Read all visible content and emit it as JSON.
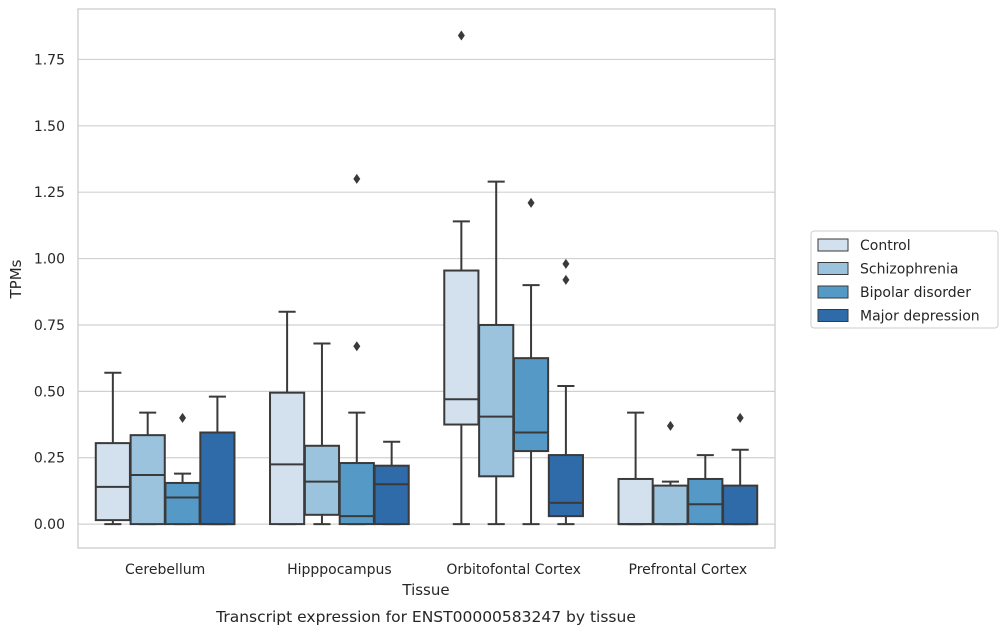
{
  "caption": "Transcript expression for ENST00000583247 by tissue",
  "chart_data": {
    "type": "box",
    "xlabel": "Tissue",
    "ylabel": "TPMs",
    "ylim": [
      -0.09,
      1.94
    ],
    "yticks": [
      "0.00",
      "0.25",
      "0.50",
      "0.75",
      "1.00",
      "1.25",
      "1.50",
      "1.75"
    ],
    "grid": "horizontal",
    "legend_position": "right",
    "categories": [
      "Cerebellum",
      "Hipppocampus",
      "Orbitofontal Cortex",
      "Prefrontal Cortex"
    ],
    "series": [
      {
        "name": "Control",
        "color": "#d3e1ef",
        "boxes": [
          {
            "min": 0.0,
            "q1": 0.015,
            "median": 0.14,
            "q3": 0.305,
            "max": 0.57,
            "outliers": []
          },
          {
            "min": 0.0,
            "q1": 0.0,
            "median": 0.225,
            "q3": 0.495,
            "max": 0.8,
            "outliers": []
          },
          {
            "min": 0.0,
            "q1": 0.375,
            "median": 0.47,
            "q3": 0.955,
            "max": 1.14,
            "outliers": [
              1.84
            ]
          },
          {
            "min": 0.0,
            "q1": 0.0,
            "median": 0.0,
            "q3": 0.17,
            "max": 0.42,
            "outliers": []
          }
        ]
      },
      {
        "name": "Schizophrenia",
        "color": "#9bc3de",
        "boxes": [
          {
            "min": 0.0,
            "q1": 0.0,
            "median": 0.185,
            "q3": 0.335,
            "max": 0.42,
            "outliers": []
          },
          {
            "min": 0.0,
            "q1": 0.035,
            "median": 0.16,
            "q3": 0.295,
            "max": 0.68,
            "outliers": []
          },
          {
            "min": 0.0,
            "q1": 0.18,
            "median": 0.405,
            "q3": 0.75,
            "max": 1.29,
            "outliers": []
          },
          {
            "min": 0.0,
            "q1": 0.0,
            "median": 0.0,
            "q3": 0.145,
            "max": 0.16,
            "outliers": [
              0.37
            ]
          }
        ]
      },
      {
        "name": "Bipolar disorder",
        "color": "#5599c7",
        "boxes": [
          {
            "min": 0.0,
            "q1": 0.0,
            "median": 0.1,
            "q3": 0.155,
            "max": 0.19,
            "outliers": [
              0.4
            ]
          },
          {
            "min": 0.0,
            "q1": 0.0,
            "median": 0.03,
            "q3": 0.23,
            "max": 0.42,
            "outliers": [
              0.67,
              1.3
            ]
          },
          {
            "min": 0.0,
            "q1": 0.275,
            "median": 0.345,
            "q3": 0.625,
            "max": 0.9,
            "outliers": [
              1.21
            ]
          },
          {
            "min": 0.0,
            "q1": 0.0,
            "median": 0.075,
            "q3": 0.17,
            "max": 0.26,
            "outliers": []
          }
        ]
      },
      {
        "name": "Major depression",
        "color": "#2e6ba8",
        "boxes": [
          {
            "min": 0.0,
            "q1": 0.0,
            "median": 0.0,
            "q3": 0.345,
            "max": 0.48,
            "outliers": []
          },
          {
            "min": 0.0,
            "q1": 0.0,
            "median": 0.15,
            "q3": 0.22,
            "max": 0.31,
            "outliers": []
          },
          {
            "min": 0.0,
            "q1": 0.03,
            "median": 0.08,
            "q3": 0.26,
            "max": 0.52,
            "outliers": [
              0.92,
              0.98
            ]
          },
          {
            "min": 0.0,
            "q1": 0.0,
            "median": 0.0,
            "q3": 0.145,
            "max": 0.28,
            "outliers": [
              0.4
            ]
          }
        ]
      }
    ]
  }
}
